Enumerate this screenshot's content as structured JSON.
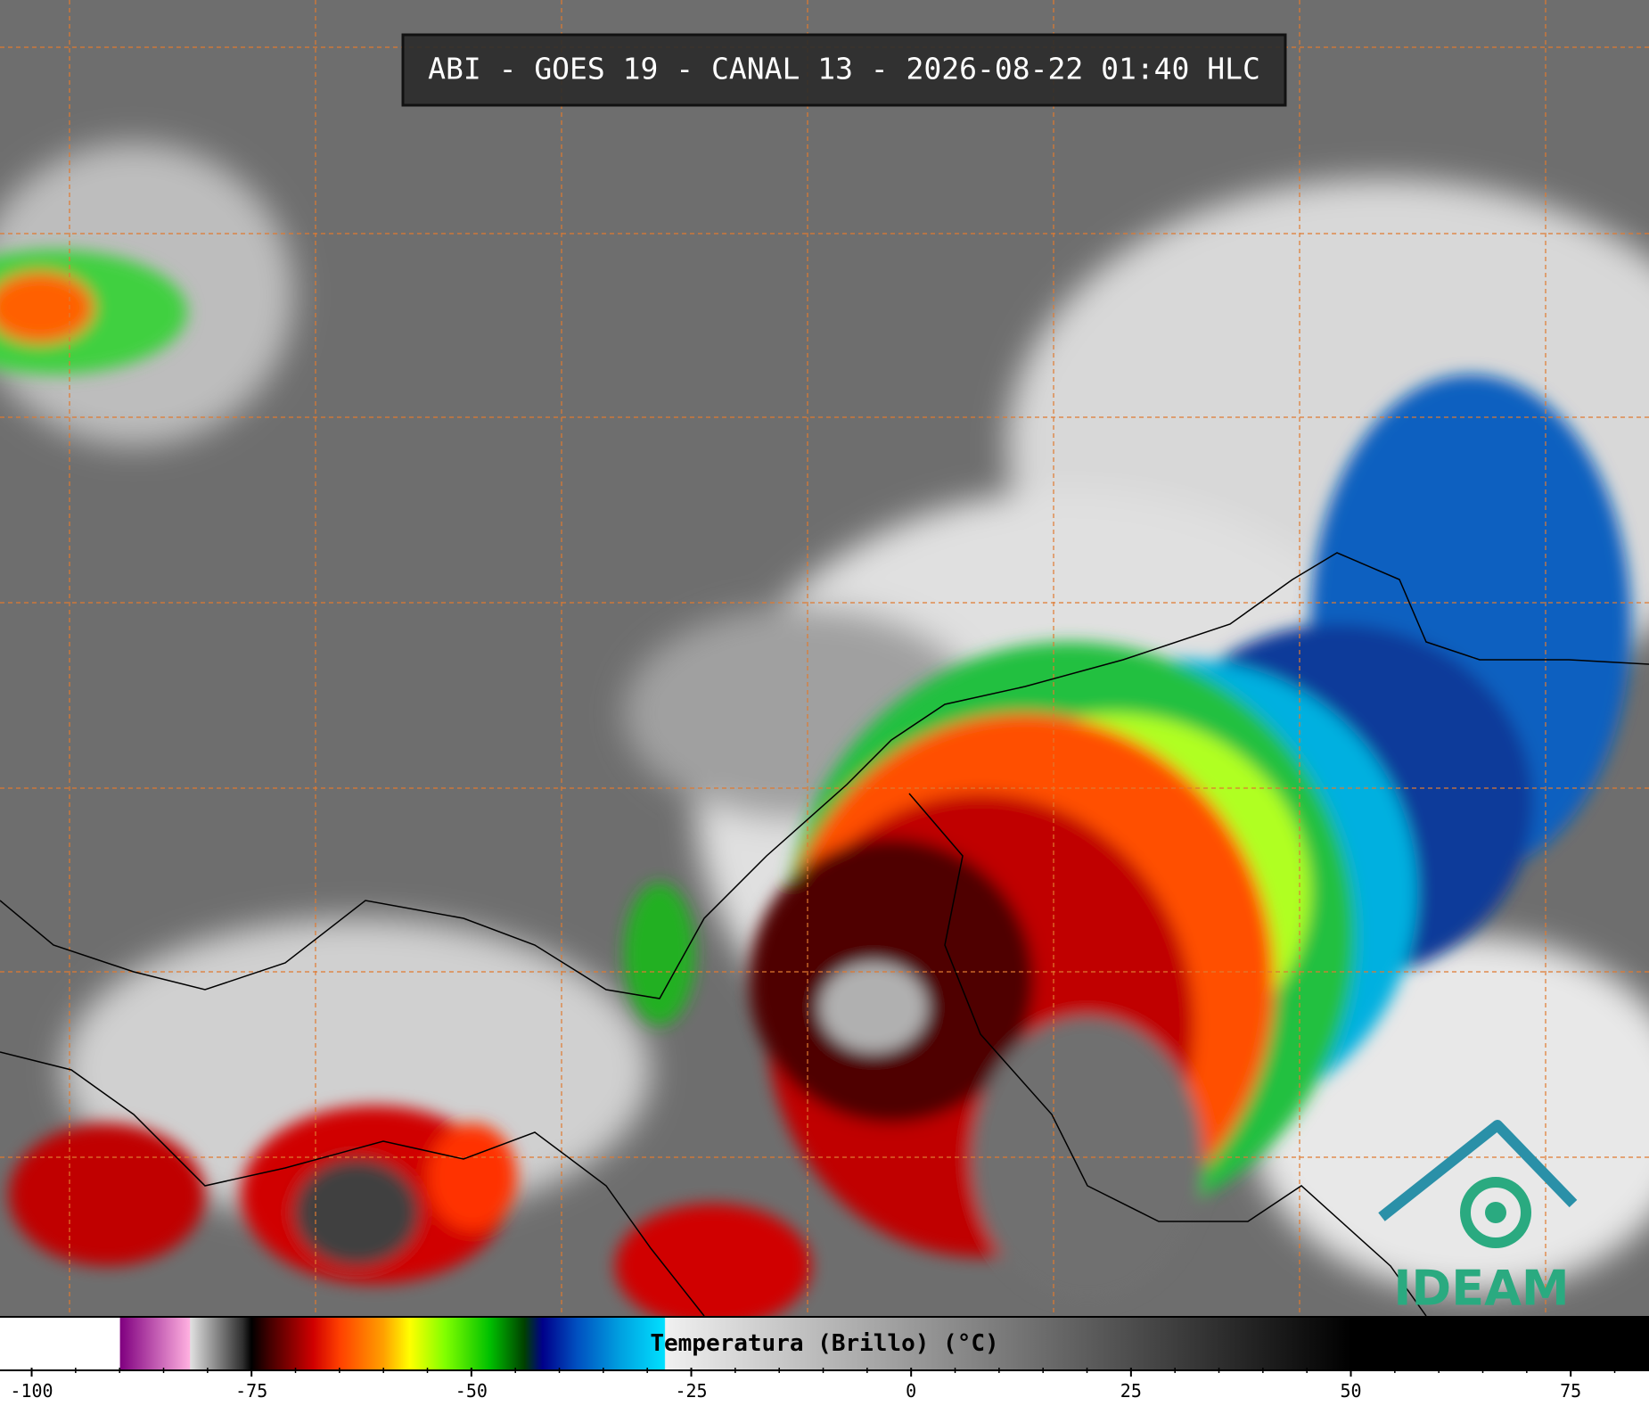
{
  "header": {
    "title": "ABI - GOES 19 - CANAL 13 - 2026-08-22 01:40 HLC"
  },
  "colorbar": {
    "label": "Temperatura (Brillo) (°C)",
    "lim": [
      -103.6,
      83.9
    ],
    "ticks": [
      -100,
      -75,
      -50,
      -25,
      0,
      25,
      50,
      75
    ],
    "minorticks": [
      -95,
      -90,
      -85,
      -80,
      -70,
      -65,
      -60,
      -55,
      -45,
      -40,
      -35,
      -30,
      -20,
      -15,
      -10,
      -5,
      5,
      10,
      15,
      20,
      30,
      35,
      40,
      45,
      55,
      60,
      65,
      70,
      80
    ]
  },
  "logo": {
    "text": "IDEAM"
  }
}
